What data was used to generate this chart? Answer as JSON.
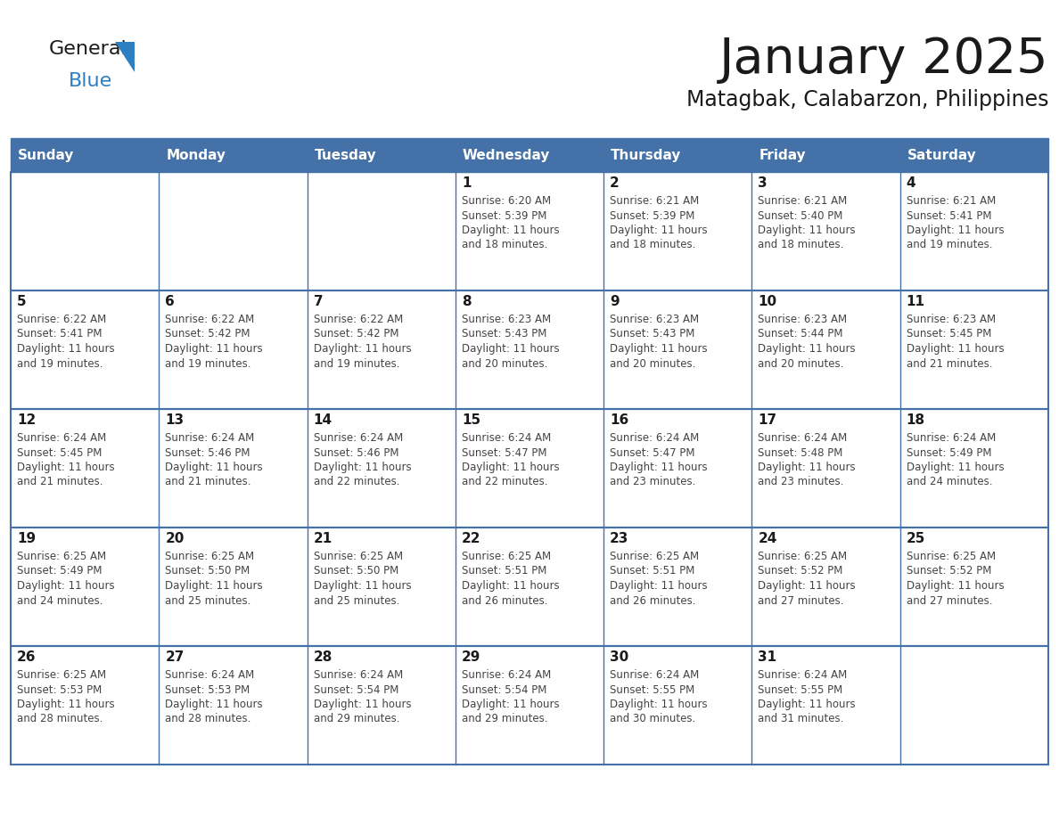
{
  "title": "January 2025",
  "subtitle": "Matagbak, Calabarzon, Philippines",
  "days_of_week": [
    "Sunday",
    "Monday",
    "Tuesday",
    "Wednesday",
    "Thursday",
    "Friday",
    "Saturday"
  ],
  "header_color": "#4472a8",
  "header_text_color": "#ffffff",
  "bg_color": "#ffffff",
  "cell_bg_color": "#ffffff",
  "grid_color": "#4472a8",
  "day_num_color": "#1a1a1a",
  "text_color": "#444444",
  "logo_general_color": "#1a1a1a",
  "logo_blue_color": "#2e7ec2",
  "calendar": [
    [
      {
        "day": null,
        "info": ""
      },
      {
        "day": null,
        "info": ""
      },
      {
        "day": null,
        "info": ""
      },
      {
        "day": 1,
        "info": "Sunrise: 6:20 AM\nSunset: 5:39 PM\nDaylight: 11 hours\nand 18 minutes."
      },
      {
        "day": 2,
        "info": "Sunrise: 6:21 AM\nSunset: 5:39 PM\nDaylight: 11 hours\nand 18 minutes."
      },
      {
        "day": 3,
        "info": "Sunrise: 6:21 AM\nSunset: 5:40 PM\nDaylight: 11 hours\nand 18 minutes."
      },
      {
        "day": 4,
        "info": "Sunrise: 6:21 AM\nSunset: 5:41 PM\nDaylight: 11 hours\nand 19 minutes."
      }
    ],
    [
      {
        "day": 5,
        "info": "Sunrise: 6:22 AM\nSunset: 5:41 PM\nDaylight: 11 hours\nand 19 minutes."
      },
      {
        "day": 6,
        "info": "Sunrise: 6:22 AM\nSunset: 5:42 PM\nDaylight: 11 hours\nand 19 minutes."
      },
      {
        "day": 7,
        "info": "Sunrise: 6:22 AM\nSunset: 5:42 PM\nDaylight: 11 hours\nand 19 minutes."
      },
      {
        "day": 8,
        "info": "Sunrise: 6:23 AM\nSunset: 5:43 PM\nDaylight: 11 hours\nand 20 minutes."
      },
      {
        "day": 9,
        "info": "Sunrise: 6:23 AM\nSunset: 5:43 PM\nDaylight: 11 hours\nand 20 minutes."
      },
      {
        "day": 10,
        "info": "Sunrise: 6:23 AM\nSunset: 5:44 PM\nDaylight: 11 hours\nand 20 minutes."
      },
      {
        "day": 11,
        "info": "Sunrise: 6:23 AM\nSunset: 5:45 PM\nDaylight: 11 hours\nand 21 minutes."
      }
    ],
    [
      {
        "day": 12,
        "info": "Sunrise: 6:24 AM\nSunset: 5:45 PM\nDaylight: 11 hours\nand 21 minutes."
      },
      {
        "day": 13,
        "info": "Sunrise: 6:24 AM\nSunset: 5:46 PM\nDaylight: 11 hours\nand 21 minutes."
      },
      {
        "day": 14,
        "info": "Sunrise: 6:24 AM\nSunset: 5:46 PM\nDaylight: 11 hours\nand 22 minutes."
      },
      {
        "day": 15,
        "info": "Sunrise: 6:24 AM\nSunset: 5:47 PM\nDaylight: 11 hours\nand 22 minutes."
      },
      {
        "day": 16,
        "info": "Sunrise: 6:24 AM\nSunset: 5:47 PM\nDaylight: 11 hours\nand 23 minutes."
      },
      {
        "day": 17,
        "info": "Sunrise: 6:24 AM\nSunset: 5:48 PM\nDaylight: 11 hours\nand 23 minutes."
      },
      {
        "day": 18,
        "info": "Sunrise: 6:24 AM\nSunset: 5:49 PM\nDaylight: 11 hours\nand 24 minutes."
      }
    ],
    [
      {
        "day": 19,
        "info": "Sunrise: 6:25 AM\nSunset: 5:49 PM\nDaylight: 11 hours\nand 24 minutes."
      },
      {
        "day": 20,
        "info": "Sunrise: 6:25 AM\nSunset: 5:50 PM\nDaylight: 11 hours\nand 25 minutes."
      },
      {
        "day": 21,
        "info": "Sunrise: 6:25 AM\nSunset: 5:50 PM\nDaylight: 11 hours\nand 25 minutes."
      },
      {
        "day": 22,
        "info": "Sunrise: 6:25 AM\nSunset: 5:51 PM\nDaylight: 11 hours\nand 26 minutes."
      },
      {
        "day": 23,
        "info": "Sunrise: 6:25 AM\nSunset: 5:51 PM\nDaylight: 11 hours\nand 26 minutes."
      },
      {
        "day": 24,
        "info": "Sunrise: 6:25 AM\nSunset: 5:52 PM\nDaylight: 11 hours\nand 27 minutes."
      },
      {
        "day": 25,
        "info": "Sunrise: 6:25 AM\nSunset: 5:52 PM\nDaylight: 11 hours\nand 27 minutes."
      }
    ],
    [
      {
        "day": 26,
        "info": "Sunrise: 6:25 AM\nSunset: 5:53 PM\nDaylight: 11 hours\nand 28 minutes."
      },
      {
        "day": 27,
        "info": "Sunrise: 6:24 AM\nSunset: 5:53 PM\nDaylight: 11 hours\nand 28 minutes."
      },
      {
        "day": 28,
        "info": "Sunrise: 6:24 AM\nSunset: 5:54 PM\nDaylight: 11 hours\nand 29 minutes."
      },
      {
        "day": 29,
        "info": "Sunrise: 6:24 AM\nSunset: 5:54 PM\nDaylight: 11 hours\nand 29 minutes."
      },
      {
        "day": 30,
        "info": "Sunrise: 6:24 AM\nSunset: 5:55 PM\nDaylight: 11 hours\nand 30 minutes."
      },
      {
        "day": 31,
        "info": "Sunrise: 6:24 AM\nSunset: 5:55 PM\nDaylight: 11 hours\nand 31 minutes."
      },
      {
        "day": null,
        "info": ""
      }
    ]
  ]
}
